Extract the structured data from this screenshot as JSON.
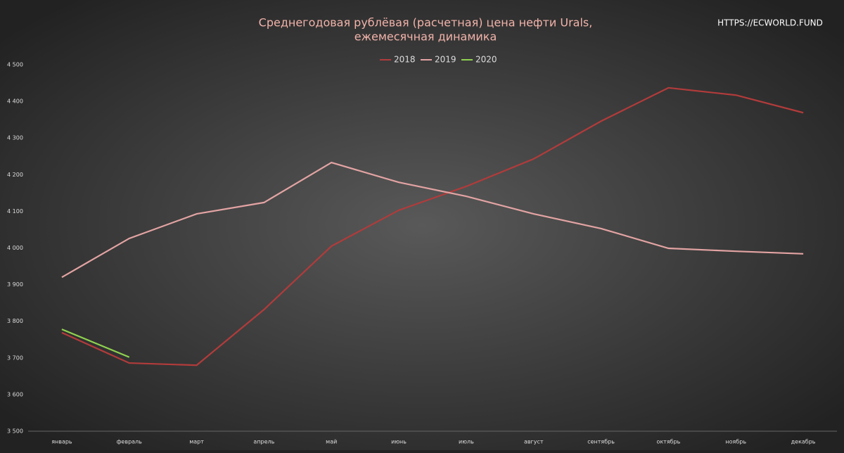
{
  "chart_data": {
    "type": "line",
    "title": [
      "Среднегодовая рублёвая (расчетная) цена нефти Urals,",
      "ежемесячная динамика"
    ],
    "annotation": "HTTPS://ECWORLD.FUND",
    "categories": [
      "январь",
      "февраль",
      "март",
      "апрель",
      "май",
      "июнь",
      "июль",
      "август",
      "сентябрь",
      "октябрь",
      "ноябрь",
      "декабрь"
    ],
    "series": [
      {
        "name": "2018",
        "color": "#b23b3b",
        "values": [
          3769,
          3686,
          3680,
          3832,
          4005,
          4103,
          4168,
          4243,
          4346,
          4437,
          4417,
          4369
        ]
      },
      {
        "name": "2019",
        "color": "#e3a3a3",
        "values": [
          3920,
          4026,
          4093,
          4124,
          4233,
          4179,
          4141,
          4093,
          4053,
          3999,
          3991,
          3984
        ]
      },
      {
        "name": "2020",
        "color": "#8fd14f",
        "values": [
          3778,
          3702,
          null,
          null,
          null,
          null,
          null,
          null,
          null,
          null,
          null,
          null
        ]
      }
    ],
    "ylim": [
      3500,
      4500
    ],
    "yticks": [
      {
        "value": 3500,
        "label": "3 500"
      },
      {
        "value": 3600,
        "label": "3 600"
      },
      {
        "value": 3700,
        "label": "3 700"
      },
      {
        "value": 3800,
        "label": "3 800"
      },
      {
        "value": 3900,
        "label": "3 900"
      },
      {
        "value": 4000,
        "label": "4 000"
      },
      {
        "value": 4100,
        "label": "4 100"
      },
      {
        "value": 4200,
        "label": "4 200"
      },
      {
        "value": 4300,
        "label": "4 300"
      },
      {
        "value": 4400,
        "label": "4 400"
      },
      {
        "value": 4500,
        "label": "4 500"
      }
    ],
    "grid": false,
    "legend": "top"
  }
}
